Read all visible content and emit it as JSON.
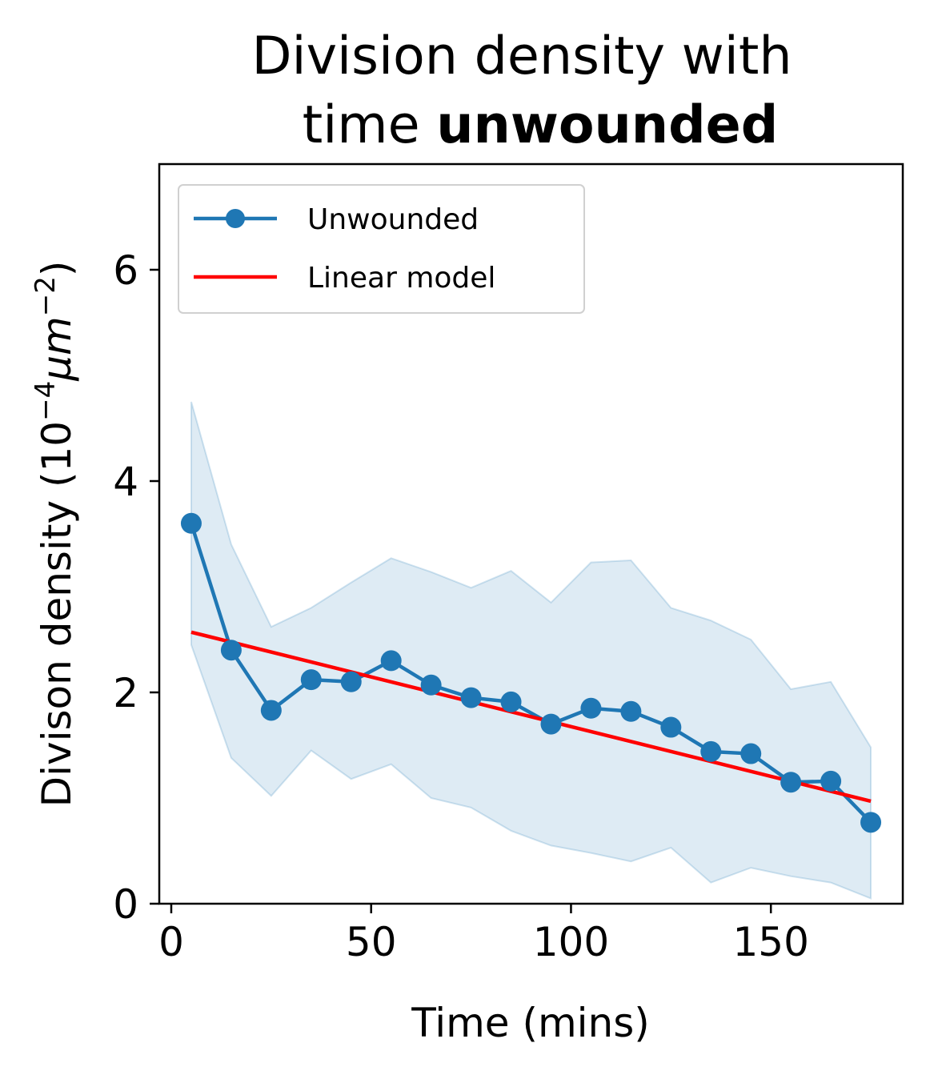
{
  "chart_data": {
    "type": "line",
    "title_line1": "Division density with",
    "title_line2_normal": "time ",
    "title_line2_bold": "unwounded",
    "xlabel": "Time (mins)",
    "ylabel": "Divison density (10",
    "ylabel_sup1": "−4",
    "ylabel_unit": "μm",
    "ylabel_sup2": "−2",
    "ylabel_close": ")",
    "xlim": [
      -3,
      183
    ],
    "ylim": [
      0,
      7
    ],
    "xticks": [
      0,
      50,
      100,
      150
    ],
    "yticks": [
      0,
      2,
      4,
      6
    ],
    "legend_position": "top-left",
    "grid": false,
    "series": [
      {
        "name": "Unwounded",
        "color": "#1f77b4",
        "marker": "circle",
        "x": [
          5,
          15,
          25,
          35,
          45,
          55,
          65,
          75,
          85,
          95,
          105,
          115,
          125,
          135,
          145,
          155,
          165,
          175
        ],
        "y": [
          3.6,
          2.4,
          1.83,
          2.12,
          2.1,
          2.3,
          2.07,
          1.95,
          1.91,
          1.7,
          1.85,
          1.82,
          1.67,
          1.44,
          1.42,
          1.15,
          1.16,
          0.77
        ],
        "band_upper": [
          4.75,
          3.4,
          2.62,
          2.8,
          3.04,
          3.27,
          3.14,
          2.99,
          3.15,
          2.85,
          3.23,
          3.25,
          2.8,
          2.68,
          2.5,
          2.03,
          2.1,
          1.48
        ],
        "band_lower": [
          2.45,
          1.38,
          1.02,
          1.45,
          1.18,
          1.32,
          1.0,
          0.91,
          0.69,
          0.55,
          0.48,
          0.4,
          0.53,
          0.2,
          0.34,
          0.26,
          0.2,
          0.05
        ],
        "band_color": "#1f77b4"
      },
      {
        "name": "Linear model",
        "color": "#ff0000",
        "x": [
          5,
          175
        ],
        "y": [
          2.57,
          0.97
        ]
      }
    ]
  }
}
